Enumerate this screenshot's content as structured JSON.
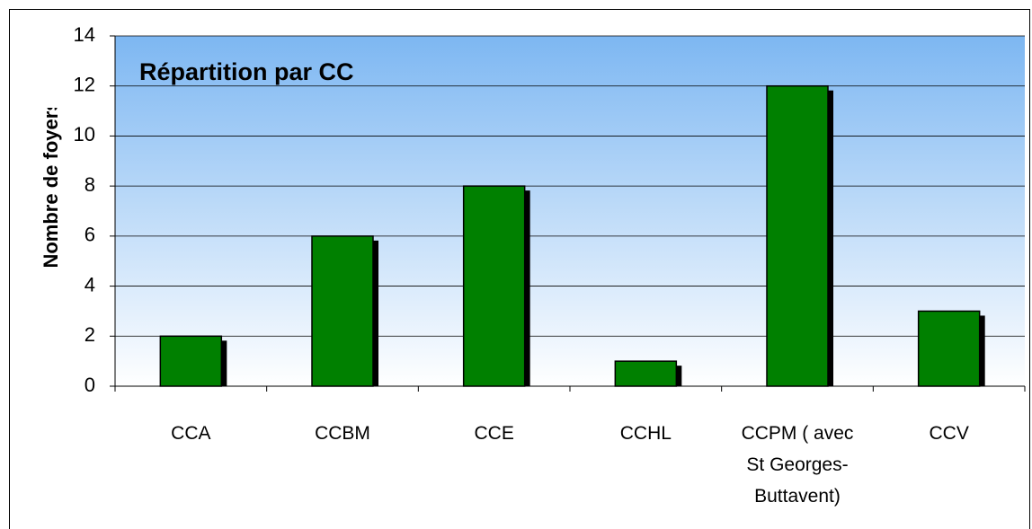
{
  "chart_data": {
    "type": "bar",
    "title": "Répartition par CC",
    "y_label": "Nombre de foyers",
    "categories": [
      "CCA",
      "CCBM",
      "CCE",
      "CCHL",
      "CCPM ( avec St Georges-Buttavent)",
      "CCV"
    ],
    "values": [
      2,
      6,
      8,
      1,
      12,
      3
    ],
    "color": "#008000",
    "ylim": [
      0,
      14
    ],
    "yticks": [
      0,
      2,
      4,
      6,
      8,
      10,
      12,
      14
    ],
    "grid": true
  }
}
